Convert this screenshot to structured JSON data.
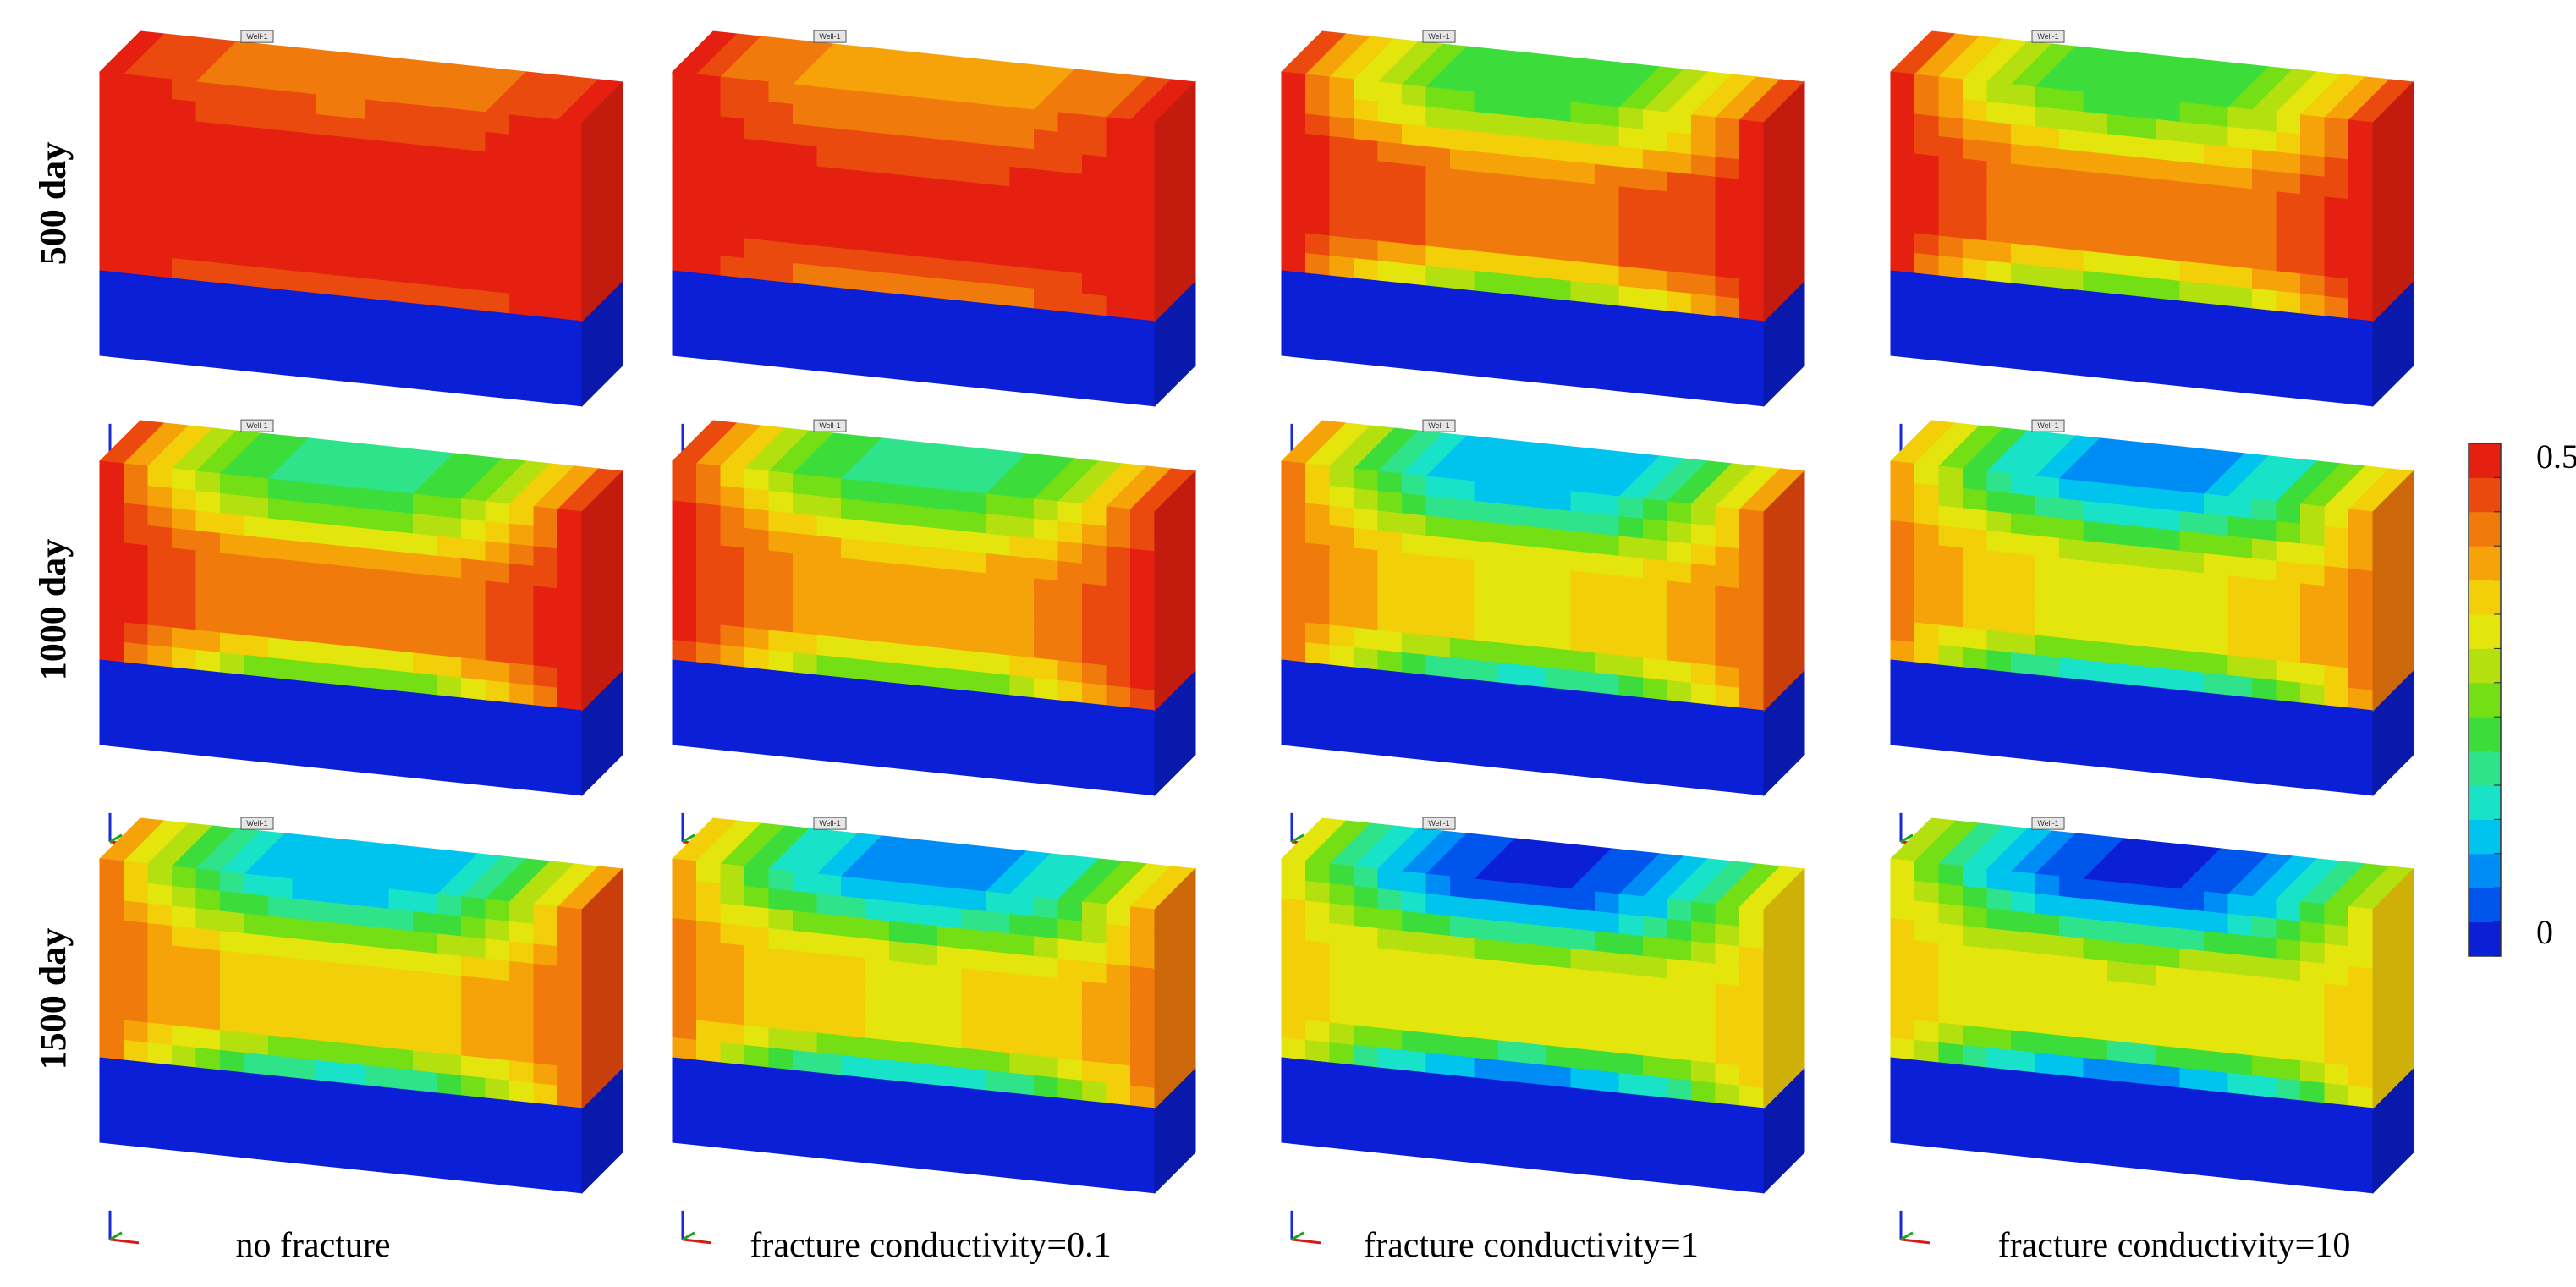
{
  "row_labels": [
    "500 day",
    "1000 day",
    "1500 day"
  ],
  "column_labels": [
    "no fracture",
    "fracture conductivity=0.1",
    "fracture conductivity=1",
    "fracture conductivity=10"
  ],
  "well_tag": "Well-1",
  "colorbar": {
    "max_label": "0.5",
    "min_label": "0",
    "min": 0,
    "max": 0.5,
    "colors": [
      "#0b1fd6",
      "#0055ec",
      "#008cf5",
      "#00c4ee",
      "#18e3c8",
      "#2fe38a",
      "#3cdc3a",
      "#74df14",
      "#b4e010",
      "#e3e50d",
      "#f3cf09",
      "#f6a309",
      "#f17a0c",
      "#eb4a0e",
      "#e52010"
    ]
  },
  "panels": [
    {
      "row": 0,
      "col": 0,
      "top_value": 0.43,
      "center_value": 0.5,
      "edge_value": 0.5,
      "bottom_layer_value": 0.0
    },
    {
      "row": 0,
      "col": 1,
      "top_value": 0.4,
      "center_value": 0.47,
      "edge_value": 0.5,
      "bottom_layer_value": 0.0
    },
    {
      "row": 0,
      "col": 2,
      "top_value": 0.22,
      "center_value": 0.42,
      "edge_value": 0.5,
      "bottom_layer_value": 0.0
    },
    {
      "row": 0,
      "col": 3,
      "top_value": 0.22,
      "center_value": 0.4,
      "edge_value": 0.5,
      "bottom_layer_value": 0.0
    },
    {
      "row": 1,
      "col": 0,
      "top_value": 0.2,
      "center_value": 0.4,
      "edge_value": 0.5,
      "bottom_layer_value": 0.0
    },
    {
      "row": 1,
      "col": 1,
      "top_value": 0.2,
      "center_value": 0.38,
      "edge_value": 0.49,
      "bottom_layer_value": 0.0
    },
    {
      "row": 1,
      "col": 2,
      "top_value": 0.12,
      "center_value": 0.33,
      "edge_value": 0.44,
      "bottom_layer_value": 0.0
    },
    {
      "row": 1,
      "col": 3,
      "top_value": 0.1,
      "center_value": 0.32,
      "edge_value": 0.42,
      "bottom_layer_value": 0.0
    },
    {
      "row": 2,
      "col": 0,
      "top_value": 0.12,
      "center_value": 0.34,
      "edge_value": 0.44,
      "bottom_layer_value": 0.0
    },
    {
      "row": 2,
      "col": 1,
      "top_value": 0.1,
      "center_value": 0.33,
      "edge_value": 0.42,
      "bottom_layer_value": 0.0
    },
    {
      "row": 2,
      "col": 2,
      "top_value": 0.04,
      "center_value": 0.3,
      "edge_value": 0.36,
      "bottom_layer_value": 0.0
    },
    {
      "row": 2,
      "col": 3,
      "top_value": 0.04,
      "center_value": 0.3,
      "edge_value": 0.35,
      "bottom_layer_value": 0.0
    }
  ]
}
